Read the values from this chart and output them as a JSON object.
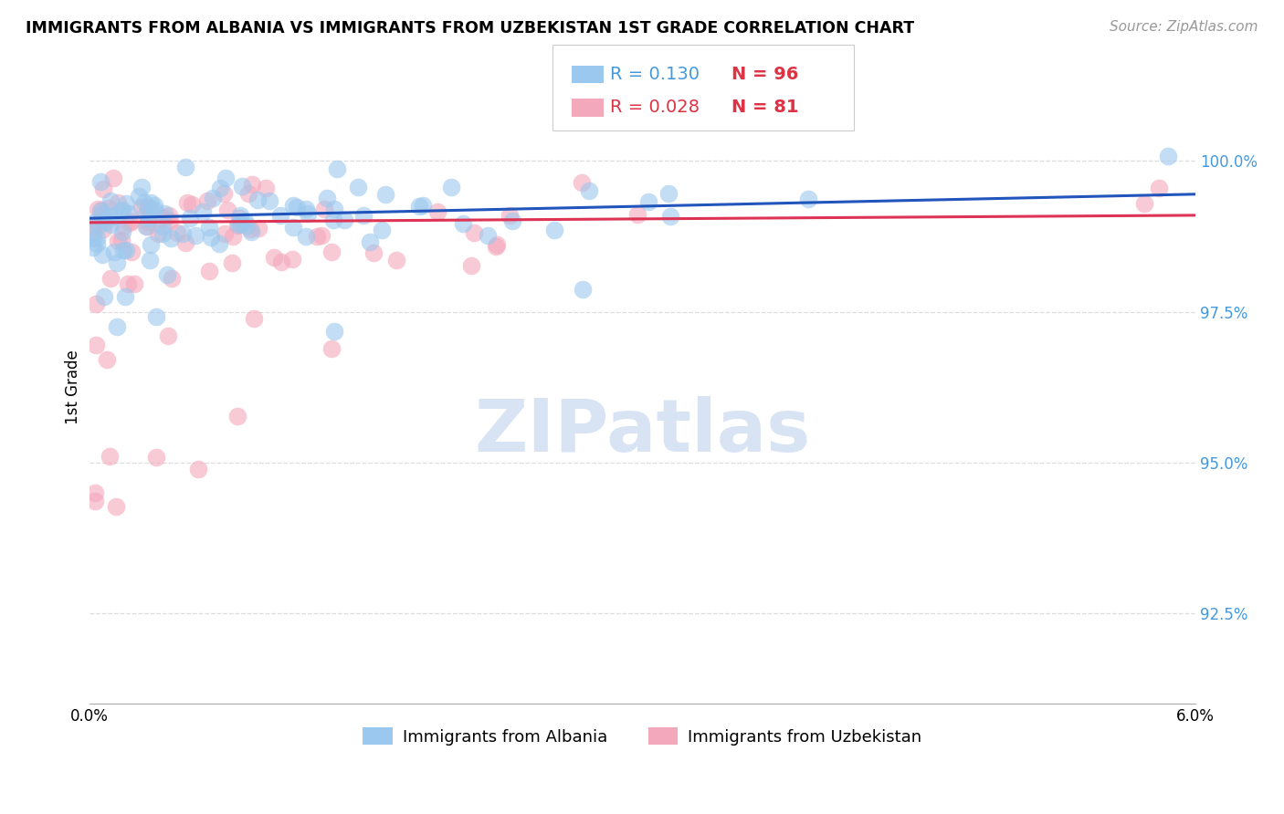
{
  "title": "IMMIGRANTS FROM ALBANIA VS IMMIGRANTS FROM UZBEKISTAN 1ST GRADE CORRELATION CHART",
  "source": "Source: ZipAtlas.com",
  "ylabel": "1st Grade",
  "yticks": [
    92.5,
    95.0,
    97.5,
    100.0
  ],
  "ytick_labels": [
    "92.5%",
    "95.0%",
    "97.5%",
    "100.0%"
  ],
  "xlim": [
    0.0,
    6.0
  ],
  "ylim": [
    91.0,
    101.5
  ],
  "legend_albania": "Immigrants from Albania",
  "legend_uzbekistan": "Immigrants from Uzbekistan",
  "R_albania": "0.130",
  "N_albania": "96",
  "R_uzbekistan": "0.028",
  "N_uzbekistan": "81",
  "color_albania": "#9BC8EE",
  "color_uzbekistan": "#F4A8BC",
  "trendline_albania": "#2255BB",
  "trendline_uzbekistan": "#DD3355",
  "watermark_color": "#C8D8F0",
  "grid_color": "#DDDDDD",
  "ytick_color": "#4499DD",
  "title_fontsize": 12.5,
  "source_fontsize": 11,
  "tick_fontsize": 12,
  "legend_fontsize": 13
}
